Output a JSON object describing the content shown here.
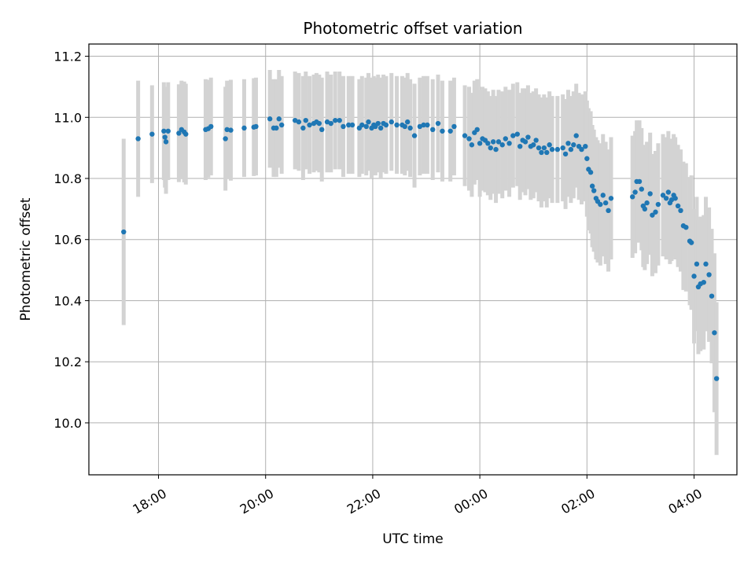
{
  "chart_data": {
    "type": "scatter",
    "title": "Photometric offset variation",
    "xlabel": "UTC time",
    "ylabel": "Photometric offset",
    "grid": true,
    "xlim_hours": [
      16.7,
      28.8
    ],
    "ylim": [
      9.83,
      11.24
    ],
    "x_ticks": [
      {
        "label": "18:00",
        "value": 18
      },
      {
        "label": "20:00",
        "value": 20
      },
      {
        "label": "22:00",
        "value": 22
      },
      {
        "label": "00:00",
        "value": 24
      },
      {
        "label": "02:00",
        "value": 26
      },
      {
        "label": "04:00",
        "value": 28
      }
    ],
    "y_ticks": [
      {
        "label": "10.0",
        "value": 10.0
      },
      {
        "label": "10.2",
        "value": 10.2
      },
      {
        "label": "10.4",
        "value": 10.4
      },
      {
        "label": "10.6",
        "value": 10.6
      },
      {
        "label": "10.8",
        "value": 10.8
      },
      {
        "label": "11.0",
        "value": 11.0
      },
      {
        "label": "11.2",
        "value": 11.2
      }
    ],
    "point_color": "#1f77b4",
    "errorbar_color": "#d3d3d3",
    "series": [
      {
        "name": "offset",
        "points": [
          [
            17.35,
            10.625,
            0.305
          ],
          [
            17.62,
            10.93,
            0.19
          ],
          [
            17.88,
            10.945,
            0.16
          ],
          [
            18.1,
            10.955,
            0.16
          ],
          [
            18.12,
            10.935,
            0.165
          ],
          [
            18.14,
            10.92,
            0.17
          ],
          [
            18.18,
            10.955,
            0.16
          ],
          [
            18.38,
            10.948,
            0.16
          ],
          [
            18.43,
            10.96,
            0.16
          ],
          [
            18.48,
            10.952,
            0.165
          ],
          [
            18.51,
            10.945,
            0.165
          ],
          [
            18.88,
            10.96,
            0.165
          ],
          [
            18.93,
            10.963,
            0.16
          ],
          [
            18.98,
            10.97,
            0.16
          ],
          [
            19.25,
            10.93,
            0.17
          ],
          [
            19.28,
            10.96,
            0.16
          ],
          [
            19.35,
            10.958,
            0.165
          ],
          [
            19.6,
            10.965,
            0.16
          ],
          [
            19.78,
            10.968,
            0.16
          ],
          [
            19.82,
            10.97,
            0.16
          ],
          [
            20.08,
            10.995,
            0.16
          ],
          [
            20.15,
            10.965,
            0.16
          ],
          [
            20.2,
            10.965,
            0.16
          ],
          [
            20.25,
            10.995,
            0.16
          ],
          [
            20.3,
            10.975,
            0.16
          ],
          [
            20.55,
            10.99,
            0.16
          ],
          [
            20.62,
            10.985,
            0.16
          ],
          [
            20.7,
            10.965,
            0.17
          ],
          [
            20.75,
            10.99,
            0.16
          ],
          [
            20.82,
            10.975,
            0.16
          ],
          [
            20.9,
            10.98,
            0.16
          ],
          [
            20.95,
            10.985,
            0.16
          ],
          [
            21.0,
            10.98,
            0.16
          ],
          [
            21.05,
            10.96,
            0.17
          ],
          [
            21.15,
            10.985,
            0.165
          ],
          [
            21.22,
            10.98,
            0.16
          ],
          [
            21.3,
            10.99,
            0.16
          ],
          [
            21.38,
            10.99,
            0.16
          ],
          [
            21.45,
            10.97,
            0.165
          ],
          [
            21.55,
            10.975,
            0.16
          ],
          [
            21.62,
            10.975,
            0.16
          ],
          [
            21.75,
            10.965,
            0.16
          ],
          [
            21.8,
            10.975,
            0.16
          ],
          [
            21.88,
            10.97,
            0.16
          ],
          [
            21.92,
            10.985,
            0.16
          ],
          [
            21.98,
            10.965,
            0.165
          ],
          [
            22.02,
            10.975,
            0.16
          ],
          [
            22.05,
            10.97,
            0.16
          ],
          [
            22.1,
            10.98,
            0.16
          ],
          [
            22.15,
            10.965,
            0.165
          ],
          [
            22.2,
            10.98,
            0.16
          ],
          [
            22.25,
            10.975,
            0.16
          ],
          [
            22.35,
            10.985,
            0.16
          ],
          [
            22.45,
            10.975,
            0.16
          ],
          [
            22.55,
            10.975,
            0.16
          ],
          [
            22.6,
            10.97,
            0.16
          ],
          [
            22.65,
            10.985,
            0.16
          ],
          [
            22.7,
            10.965,
            0.16
          ],
          [
            22.78,
            10.94,
            0.17
          ],
          [
            22.88,
            10.97,
            0.16
          ],
          [
            22.95,
            10.975,
            0.16
          ],
          [
            23.02,
            10.975,
            0.16
          ],
          [
            23.12,
            10.96,
            0.165
          ],
          [
            23.22,
            10.98,
            0.16
          ],
          [
            23.3,
            10.955,
            0.165
          ],
          [
            23.45,
            10.955,
            0.165
          ],
          [
            23.52,
            10.97,
            0.16
          ],
          [
            23.72,
            10.94,
            0.165
          ],
          [
            23.8,
            10.93,
            0.17
          ],
          [
            23.85,
            10.91,
            0.17
          ],
          [
            23.9,
            10.95,
            0.17
          ],
          [
            23.95,
            10.96,
            0.165
          ],
          [
            24.0,
            10.915,
            0.175
          ],
          [
            24.05,
            10.93,
            0.17
          ],
          [
            24.1,
            10.925,
            0.17
          ],
          [
            24.15,
            10.915,
            0.17
          ],
          [
            24.2,
            10.9,
            0.17
          ],
          [
            24.25,
            10.92,
            0.17
          ],
          [
            24.3,
            10.895,
            0.175
          ],
          [
            24.35,
            10.92,
            0.17
          ],
          [
            24.42,
            10.91,
            0.175
          ],
          [
            24.48,
            10.93,
            0.17
          ],
          [
            24.55,
            10.915,
            0.175
          ],
          [
            24.62,
            10.94,
            0.17
          ],
          [
            24.7,
            10.945,
            0.17
          ],
          [
            24.75,
            10.905,
            0.175
          ],
          [
            24.8,
            10.925,
            0.17
          ],
          [
            24.85,
            10.92,
            0.175
          ],
          [
            24.9,
            10.935,
            0.17
          ],
          [
            24.95,
            10.905,
            0.175
          ],
          [
            25.0,
            10.91,
            0.175
          ],
          [
            25.05,
            10.925,
            0.17
          ],
          [
            25.1,
            10.9,
            0.175
          ],
          [
            25.15,
            10.885,
            0.18
          ],
          [
            25.2,
            10.9,
            0.175
          ],
          [
            25.25,
            10.885,
            0.18
          ],
          [
            25.3,
            10.91,
            0.175
          ],
          [
            25.35,
            10.895,
            0.175
          ],
          [
            25.45,
            10.895,
            0.175
          ],
          [
            25.55,
            10.9,
            0.175
          ],
          [
            25.6,
            10.88,
            0.18
          ],
          [
            25.65,
            10.915,
            0.175
          ],
          [
            25.7,
            10.895,
            0.175
          ],
          [
            25.75,
            10.91,
            0.175
          ],
          [
            25.8,
            10.94,
            0.17
          ],
          [
            25.85,
            10.905,
            0.175
          ],
          [
            25.9,
            10.895,
            0.18
          ],
          [
            25.97,
            10.905,
            0.18
          ],
          [
            26.0,
            10.865,
            0.19
          ],
          [
            26.03,
            10.83,
            0.2
          ],
          [
            26.07,
            10.82,
            0.2
          ],
          [
            26.1,
            10.775,
            0.2
          ],
          [
            26.13,
            10.76,
            0.2
          ],
          [
            26.17,
            10.735,
            0.2
          ],
          [
            26.2,
            10.725,
            0.2
          ],
          [
            26.25,
            10.715,
            0.2
          ],
          [
            26.3,
            10.745,
            0.2
          ],
          [
            26.35,
            10.72,
            0.2
          ],
          [
            26.4,
            10.695,
            0.2
          ],
          [
            26.45,
            10.735,
            0.2
          ],
          [
            26.85,
            10.74,
            0.2
          ],
          [
            26.9,
            10.755,
            0.2
          ],
          [
            26.93,
            10.79,
            0.2
          ],
          [
            26.98,
            10.79,
            0.2
          ],
          [
            27.02,
            10.765,
            0.2
          ],
          [
            27.05,
            10.71,
            0.2
          ],
          [
            27.08,
            10.7,
            0.2
          ],
          [
            27.12,
            10.72,
            0.2
          ],
          [
            27.18,
            10.75,
            0.2
          ],
          [
            27.22,
            10.68,
            0.2
          ],
          [
            27.28,
            10.69,
            0.2
          ],
          [
            27.33,
            10.715,
            0.2
          ],
          [
            27.42,
            10.745,
            0.2
          ],
          [
            27.48,
            10.735,
            0.2
          ],
          [
            27.52,
            10.755,
            0.2
          ],
          [
            27.55,
            10.72,
            0.2
          ],
          [
            27.58,
            10.73,
            0.2
          ],
          [
            27.62,
            10.745,
            0.2
          ],
          [
            27.65,
            10.735,
            0.2
          ],
          [
            27.7,
            10.71,
            0.2
          ],
          [
            27.75,
            10.695,
            0.2
          ],
          [
            27.8,
            10.645,
            0.21
          ],
          [
            27.85,
            10.64,
            0.21
          ],
          [
            27.92,
            10.595,
            0.21
          ],
          [
            27.95,
            10.59,
            0.22
          ],
          [
            28.0,
            10.48,
            0.22
          ],
          [
            28.05,
            10.52,
            0.22
          ],
          [
            28.08,
            10.445,
            0.22
          ],
          [
            28.12,
            10.455,
            0.22
          ],
          [
            28.18,
            10.46,
            0.22
          ],
          [
            28.22,
            10.52,
            0.22
          ],
          [
            28.28,
            10.485,
            0.22
          ],
          [
            28.33,
            10.415,
            0.22
          ],
          [
            28.38,
            10.295,
            0.26
          ],
          [
            28.42,
            10.145,
            0.25
          ]
        ]
      }
    ]
  }
}
